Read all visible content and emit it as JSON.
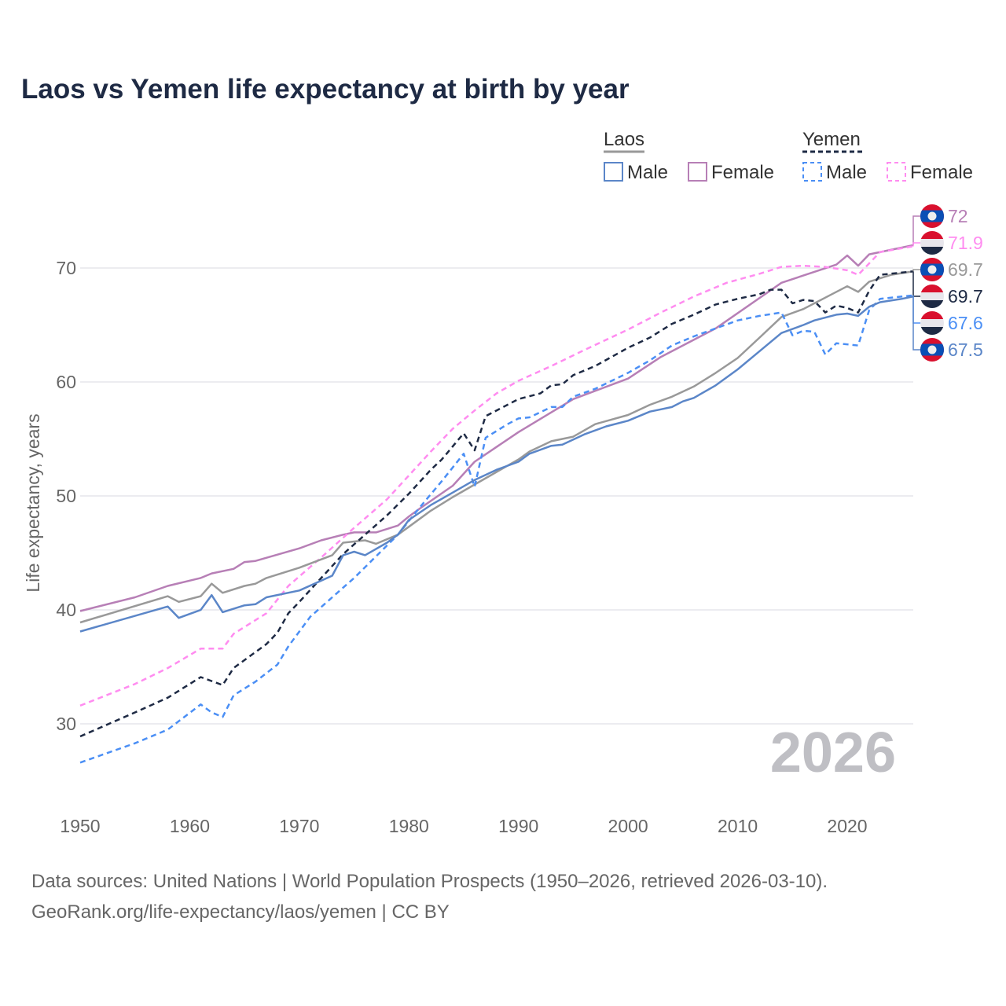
{
  "title": "Laos vs Yemen life expectancy at birth by year",
  "footer": {
    "line1": "Data sources: United Nations | World Population Prospects (1950–2026, retrieved 2026-03-10).",
    "line2": "GeoRank.org/life-expectancy/laos/yemen | CC BY"
  },
  "chart_data": {
    "type": "line",
    "title": "Laos vs Yemen life expectancy at birth by year",
    "xlabel": "",
    "ylabel": "Life expectancy, years",
    "xlim": [
      1950,
      2026
    ],
    "ylim": [
      25,
      75
    ],
    "xticks": [
      "1950",
      "1960",
      "1970",
      "1980",
      "1990",
      "2000",
      "2010",
      "2020"
    ],
    "yticks": [
      "30",
      "40",
      "50",
      "60",
      "70"
    ],
    "grid": true,
    "year_label": "2026",
    "legend": {
      "placement": "top-right",
      "groups": [
        {
          "name": "Laos",
          "items": [
            "Male",
            "Female"
          ]
        },
        {
          "name": "Yemen",
          "items": [
            "Male",
            "Female"
          ]
        }
      ]
    },
    "series": [
      {
        "name": "Laos Female",
        "color": "#b77fb6",
        "dashed": false,
        "flag": "laos",
        "end_label": "72",
        "points": [
          [
            1950,
            39.9
          ],
          [
            1955,
            41.1
          ],
          [
            1958,
            42.1
          ],
          [
            1961,
            42.8
          ],
          [
            1962,
            43.2
          ],
          [
            1964,
            43.6
          ],
          [
            1965,
            44.2
          ],
          [
            1966,
            44.3
          ],
          [
            1970,
            45.4
          ],
          [
            1972,
            46.1
          ],
          [
            1974,
            46.6
          ],
          [
            1975,
            46.8
          ],
          [
            1977,
            46.8
          ],
          [
            1979,
            47.4
          ],
          [
            1980,
            48.2
          ],
          [
            1981,
            48.9
          ],
          [
            1984,
            50.9
          ],
          [
            1986,
            53.0
          ],
          [
            1990,
            55.6
          ],
          [
            1995,
            58.5
          ],
          [
            2000,
            60.3
          ],
          [
            2003,
            62.2
          ],
          [
            2008,
            64.7
          ],
          [
            2014,
            68.7
          ],
          [
            2019,
            70.3
          ],
          [
            2020,
            71.1
          ],
          [
            2021,
            70.2
          ],
          [
            2022,
            71.2
          ],
          [
            2026,
            72.0
          ]
        ]
      },
      {
        "name": "Yemen Female",
        "color": "#ff8cf0",
        "dashed": true,
        "flag": "yemen",
        "end_label": "71.9",
        "points": [
          [
            1950,
            31.6
          ],
          [
            1955,
            33.5
          ],
          [
            1958,
            34.9
          ],
          [
            1961,
            36.6
          ],
          [
            1963,
            36.6
          ],
          [
            1964,
            37.9
          ],
          [
            1967,
            39.7
          ],
          [
            1969,
            42.1
          ],
          [
            1972,
            44.6
          ],
          [
            1975,
            47.2
          ],
          [
            1978,
            49.7
          ],
          [
            1980,
            51.8
          ],
          [
            1982,
            53.9
          ],
          [
            1984,
            55.9
          ],
          [
            1986,
            57.5
          ],
          [
            1988,
            59.0
          ],
          [
            1990,
            60.1
          ],
          [
            1993,
            61.4
          ],
          [
            1996,
            62.8
          ],
          [
            2000,
            64.6
          ],
          [
            2003,
            66.1
          ],
          [
            2006,
            67.5
          ],
          [
            2009,
            68.7
          ],
          [
            2012,
            69.5
          ],
          [
            2014,
            70.1
          ],
          [
            2016,
            70.2
          ],
          [
            2018,
            70.1
          ],
          [
            2020,
            69.8
          ],
          [
            2021,
            69.4
          ],
          [
            2023,
            71.4
          ],
          [
            2026,
            71.9
          ]
        ]
      },
      {
        "name": "Laos",
        "color": "#999999",
        "dashed": false,
        "flag": "laos",
        "end_label": "69.7",
        "points": [
          [
            1950,
            38.9
          ],
          [
            1958,
            41.2
          ],
          [
            1959,
            40.7
          ],
          [
            1961,
            41.2
          ],
          [
            1962,
            42.3
          ],
          [
            1963,
            41.5
          ],
          [
            1965,
            42.1
          ],
          [
            1966,
            42.3
          ],
          [
            1967,
            42.8
          ],
          [
            1970,
            43.7
          ],
          [
            1973,
            44.8
          ],
          [
            1974,
            45.9
          ],
          [
            1976,
            46.1
          ],
          [
            1977,
            45.8
          ],
          [
            1979,
            46.6
          ],
          [
            1980,
            47.3
          ],
          [
            1982,
            48.7
          ],
          [
            1984,
            49.9
          ],
          [
            1986,
            51.0
          ],
          [
            1988,
            52.1
          ],
          [
            1990,
            53.2
          ],
          [
            1991,
            53.9
          ],
          [
            1993,
            54.8
          ],
          [
            1995,
            55.2
          ],
          [
            1997,
            56.3
          ],
          [
            2000,
            57.1
          ],
          [
            2002,
            58.0
          ],
          [
            2004,
            58.7
          ],
          [
            2006,
            59.6
          ],
          [
            2008,
            60.8
          ],
          [
            2010,
            62.1
          ],
          [
            2012,
            63.9
          ],
          [
            2014,
            65.7
          ],
          [
            2016,
            66.4
          ],
          [
            2018,
            67.4
          ],
          [
            2020,
            68.4
          ],
          [
            2021,
            67.9
          ],
          [
            2022,
            68.8
          ],
          [
            2024,
            69.4
          ],
          [
            2026,
            69.7
          ]
        ]
      },
      {
        "name": "Yemen",
        "color": "#1e2a44",
        "dashed": true,
        "flag": "yemen",
        "end_label": "69.7",
        "points": [
          [
            1950,
            28.9
          ],
          [
            1955,
            31.0
          ],
          [
            1958,
            32.3
          ],
          [
            1961,
            34.1
          ],
          [
            1963,
            33.4
          ],
          [
            1964,
            34.9
          ],
          [
            1967,
            37.0
          ],
          [
            1968,
            38.0
          ],
          [
            1969,
            39.7
          ],
          [
            1970,
            40.7
          ],
          [
            1972,
            42.8
          ],
          [
            1974,
            44.9
          ],
          [
            1976,
            46.6
          ],
          [
            1978,
            48.3
          ],
          [
            1980,
            50.2
          ],
          [
            1982,
            52.3
          ],
          [
            1983,
            53.2
          ],
          [
            1985,
            55.5
          ],
          [
            1986,
            54.0
          ],
          [
            1987,
            57.0
          ],
          [
            1989,
            58.0
          ],
          [
            1990,
            58.5
          ],
          [
            1992,
            59.0
          ],
          [
            1993,
            59.7
          ],
          [
            1994,
            59.8
          ],
          [
            1995,
            60.6
          ],
          [
            1997,
            61.4
          ],
          [
            2000,
            63.0
          ],
          [
            2002,
            63.9
          ],
          [
            2004,
            65.1
          ],
          [
            2006,
            65.9
          ],
          [
            2008,
            66.8
          ],
          [
            2010,
            67.3
          ],
          [
            2012,
            67.7
          ],
          [
            2013,
            68.1
          ],
          [
            2014,
            68.1
          ],
          [
            2015,
            66.9
          ],
          [
            2016,
            67.2
          ],
          [
            2017,
            67.1
          ],
          [
            2018,
            66.1
          ],
          [
            2019,
            66.7
          ],
          [
            2020,
            66.5
          ],
          [
            2021,
            66.1
          ],
          [
            2022,
            68.0
          ],
          [
            2023,
            69.4
          ],
          [
            2026,
            69.7
          ]
        ]
      },
      {
        "name": "Yemen Male",
        "color": "#4b8ff5",
        "dashed": true,
        "flag": "yemen",
        "end_label": "67.6",
        "points": [
          [
            1950,
            26.6
          ],
          [
            1955,
            28.3
          ],
          [
            1958,
            29.5
          ],
          [
            1961,
            31.7
          ],
          [
            1962,
            31.0
          ],
          [
            1963,
            30.6
          ],
          [
            1964,
            32.5
          ],
          [
            1966,
            33.7
          ],
          [
            1968,
            35.2
          ],
          [
            1969,
            36.8
          ],
          [
            1971,
            39.4
          ],
          [
            1973,
            41.1
          ],
          [
            1975,
            42.8
          ],
          [
            1977,
            44.7
          ],
          [
            1979,
            46.6
          ],
          [
            1981,
            49.0
          ],
          [
            1983,
            51.3
          ],
          [
            1985,
            53.7
          ],
          [
            1986,
            50.8
          ],
          [
            1987,
            55.1
          ],
          [
            1989,
            56.3
          ],
          [
            1990,
            56.8
          ],
          [
            1991,
            56.9
          ],
          [
            1993,
            57.8
          ],
          [
            1994,
            57.8
          ],
          [
            1995,
            58.7
          ],
          [
            1997,
            59.4
          ],
          [
            2000,
            60.8
          ],
          [
            2002,
            61.9
          ],
          [
            2004,
            63.2
          ],
          [
            2006,
            64.0
          ],
          [
            2008,
            64.7
          ],
          [
            2010,
            65.4
          ],
          [
            2012,
            65.8
          ],
          [
            2014,
            66.1
          ],
          [
            2015,
            64.1
          ],
          [
            2016,
            64.5
          ],
          [
            2017,
            64.4
          ],
          [
            2018,
            62.4
          ],
          [
            2019,
            63.4
          ],
          [
            2021,
            63.2
          ],
          [
            2022,
            66.3
          ],
          [
            2023,
            67.3
          ],
          [
            2026,
            67.6
          ]
        ]
      },
      {
        "name": "Laos Male",
        "color": "#5b86c8",
        "dashed": false,
        "flag": "laos",
        "end_label": "67.5",
        "points": [
          [
            1950,
            38.1
          ],
          [
            1958,
            40.3
          ],
          [
            1959,
            39.3
          ],
          [
            1961,
            40.0
          ],
          [
            1962,
            41.3
          ],
          [
            1963,
            39.8
          ],
          [
            1965,
            40.4
          ],
          [
            1966,
            40.5
          ],
          [
            1967,
            41.1
          ],
          [
            1970,
            41.7
          ],
          [
            1973,
            43.0
          ],
          [
            1974,
            44.8
          ],
          [
            1975,
            45.1
          ],
          [
            1976,
            44.8
          ],
          [
            1978,
            45.9
          ],
          [
            1979,
            46.6
          ],
          [
            1980,
            47.9
          ],
          [
            1982,
            49.2
          ],
          [
            1984,
            50.3
          ],
          [
            1986,
            51.4
          ],
          [
            1988,
            52.3
          ],
          [
            1990,
            53.0
          ],
          [
            1991,
            53.7
          ],
          [
            1993,
            54.4
          ],
          [
            1994,
            54.5
          ],
          [
            1996,
            55.4
          ],
          [
            1998,
            56.1
          ],
          [
            2000,
            56.6
          ],
          [
            2002,
            57.4
          ],
          [
            2003,
            57.6
          ],
          [
            2004,
            57.8
          ],
          [
            2005,
            58.3
          ],
          [
            2006,
            58.6
          ],
          [
            2008,
            59.7
          ],
          [
            2010,
            61.1
          ],
          [
            2012,
            62.7
          ],
          [
            2014,
            64.3
          ],
          [
            2016,
            65.0
          ],
          [
            2017,
            65.4
          ],
          [
            2019,
            65.9
          ],
          [
            2020,
            66.0
          ],
          [
            2021,
            65.8
          ],
          [
            2022,
            66.6
          ],
          [
            2023,
            67.0
          ],
          [
            2025,
            67.3
          ],
          [
            2026,
            67.5
          ]
        ]
      }
    ]
  }
}
